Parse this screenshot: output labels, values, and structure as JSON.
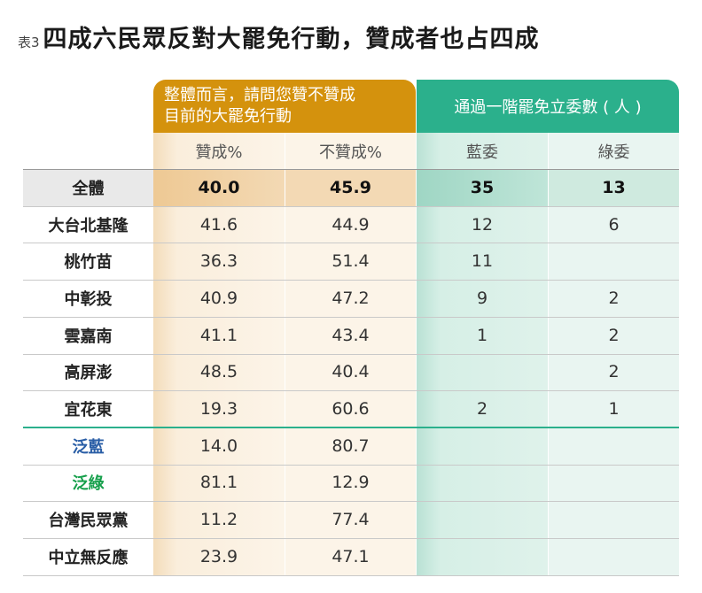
{
  "title": {
    "prefix": "表3",
    "text": "四成六民眾反對大罷免行動，贊成者也占四成"
  },
  "group_headers": {
    "opinion": [
      "整體而言，請問您贊不贊成",
      "目前的大罷免行動"
    ],
    "recall": "通過一階罷免立委數 ( 人 )"
  },
  "columns": [
    "贊成%",
    "不贊成%",
    "藍委",
    "綠委"
  ],
  "rows": [
    {
      "label": "全體",
      "values": [
        "40.0",
        "45.9",
        "35",
        "13"
      ]
    },
    {
      "label": "大台北基隆",
      "values": [
        "41.6",
        "44.9",
        "12",
        "6"
      ]
    },
    {
      "label": "桃竹苗",
      "values": [
        "36.3",
        "51.4",
        "11",
        ""
      ]
    },
    {
      "label": "中彰投",
      "values": [
        "40.9",
        "47.2",
        "9",
        "2"
      ]
    },
    {
      "label": "雲嘉南",
      "values": [
        "41.1",
        "43.4",
        "1",
        "2"
      ]
    },
    {
      "label": "高屏澎",
      "values": [
        "48.5",
        "40.4",
        "",
        "2"
      ]
    },
    {
      "label": "宜花東",
      "values": [
        "19.3",
        "60.6",
        "2",
        "1"
      ]
    },
    {
      "label": "泛藍",
      "values": [
        "14.0",
        "80.7",
        "",
        ""
      ]
    },
    {
      "label": "泛綠",
      "values": [
        "81.1",
        "12.9",
        "",
        ""
      ]
    },
    {
      "label": "台灣民眾黨",
      "values": [
        "11.2",
        "77.4",
        "",
        ""
      ]
    },
    {
      "label": "中立無反應",
      "values": [
        "23.9",
        "47.1",
        "",
        ""
      ]
    }
  ],
  "colors": {
    "orange_header": "#d4920d",
    "green_header": "#2bb08c",
    "blue_label": "#2a5ea6",
    "green_label": "#17a04c"
  }
}
